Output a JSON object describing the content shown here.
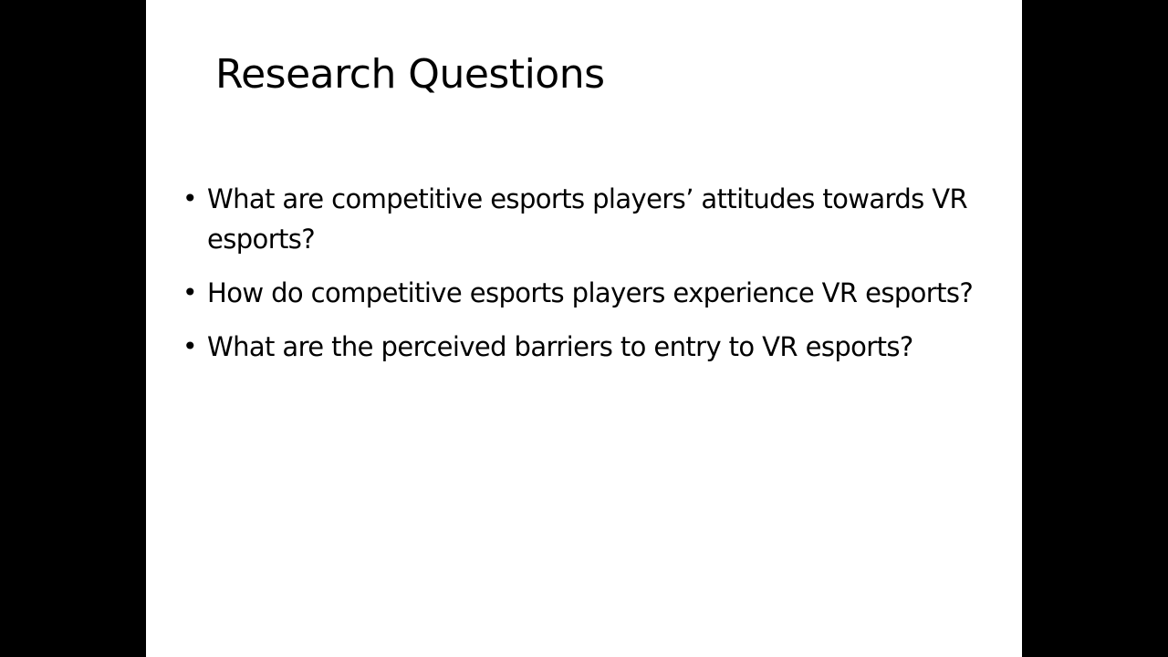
{
  "slide": {
    "title": "Research Questions",
    "bullets": [
      "What are competitive esports players’ attitudes towards VR esports?",
      "How do competitive esports players experience VR esports?",
      "What are the perceived barriers to entry to VR esports?"
    ],
    "bullet_glyph": "•"
  },
  "colors": {
    "background": "#000000",
    "slide": "#ffffff",
    "text": "#000000"
  }
}
